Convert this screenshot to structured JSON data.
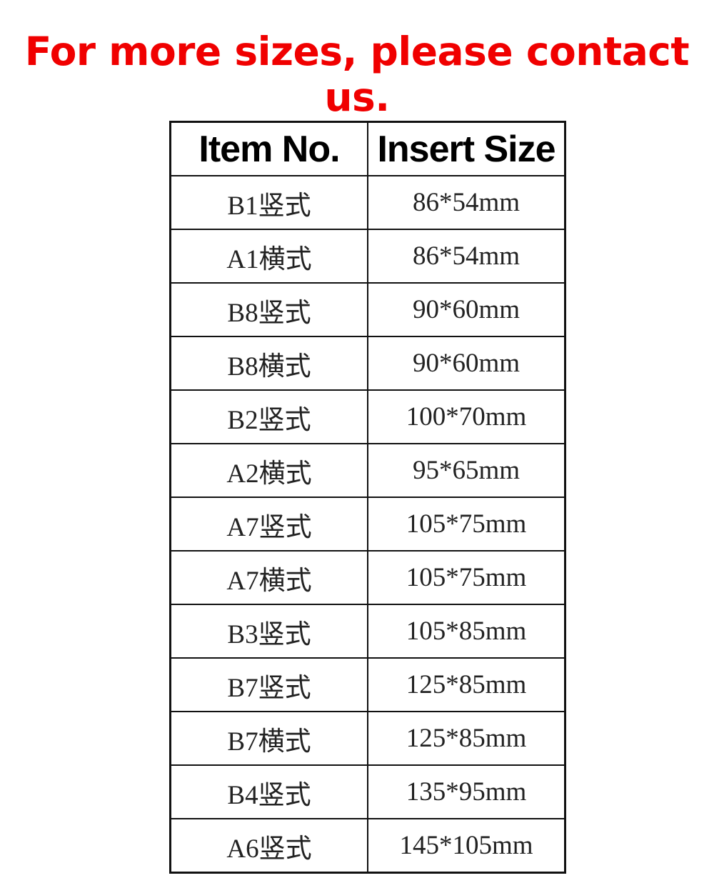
{
  "title": "For more sizes, please contact us.",
  "table": {
    "headers": [
      "Item No.",
      "Insert Size"
    ],
    "rows": [
      [
        "B1竖式",
        "86*54mm"
      ],
      [
        "A1横式",
        "86*54mm"
      ],
      [
        "B8竖式",
        "90*60mm"
      ],
      [
        "B8横式",
        "90*60mm"
      ],
      [
        "B2竖式",
        "100*70mm"
      ],
      [
        "A2横式",
        "95*65mm"
      ],
      [
        "A7竖式",
        "105*75mm"
      ],
      [
        "A7横式",
        "105*75mm"
      ],
      [
        "B3竖式",
        "105*85mm"
      ],
      [
        "B7竖式",
        "125*85mm"
      ],
      [
        "B7横式",
        "125*85mm"
      ],
      [
        "B4竖式",
        "135*95mm"
      ],
      [
        "A6竖式",
        "145*105mm"
      ]
    ]
  },
  "colors": {
    "title": "#f00000",
    "border": "#111111"
  }
}
